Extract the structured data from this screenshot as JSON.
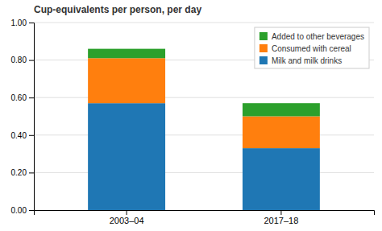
{
  "chart_data": {
    "type": "bar",
    "stacked": true,
    "title": "Cup-equivalents per person, per day",
    "categories": [
      "2003–04",
      "2017–18"
    ],
    "series": [
      {
        "name": "Milk and milk drinks",
        "values": [
          0.57,
          0.33
        ]
      },
      {
        "name": "Consumed with cereal",
        "values": [
          0.24,
          0.17
        ]
      },
      {
        "name": "Added to other beverages",
        "values": [
          0.05,
          0.07
        ]
      }
    ],
    "ylim": [
      0.0,
      1.0
    ],
    "yticks": [
      {
        "value": 0.0,
        "label": "0.00"
      },
      {
        "value": 0.2,
        "label": "0.20"
      },
      {
        "value": 0.4,
        "label": "0.40"
      },
      {
        "value": 0.6,
        "label": "0.60"
      },
      {
        "value": 0.8,
        "label": "0.80"
      },
      {
        "value": 1.0,
        "label": "1.00"
      }
    ],
    "grid": true,
    "legend": "upper right"
  }
}
